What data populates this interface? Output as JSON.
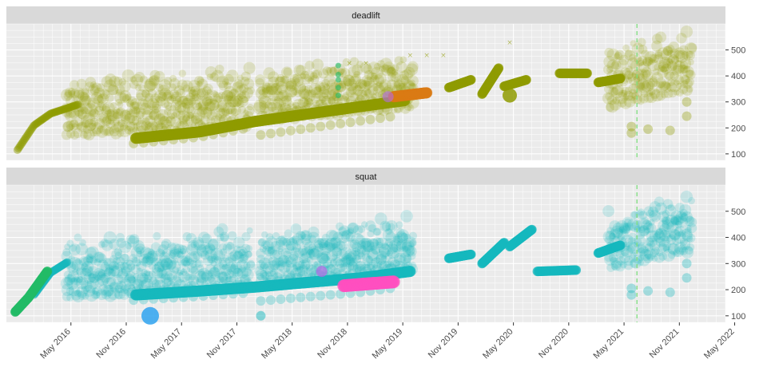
{
  "chart_data": {
    "type": "scatter",
    "facets": [
      "deadlift",
      "squat"
    ],
    "x_ticks": [
      "May 2016",
      "Nov 2016",
      "May 2017",
      "Nov 2017",
      "May 2018",
      "Nov 2018",
      "May 2019",
      "Nov 2019",
      "May 2020",
      "Nov 2020",
      "May 2021",
      "Nov 2021",
      "May 2022"
    ],
    "x_range": [
      2015.75,
      2022.25
    ],
    "y_ticks": [
      100,
      200,
      300,
      400,
      500
    ],
    "y_range": [
      75,
      600
    ],
    "vline_x": 2021.45,
    "colors": {
      "deadlift": "#8f9b00",
      "squat": "#16b8bd",
      "orange": "#d97a14",
      "green": "#22bb66",
      "blue": "#3aa7f0",
      "pink": "#ff4fbf",
      "purple": "#b46ae6",
      "vline": "#7fe07f"
    },
    "deadlift": {
      "main_trend": [
        [
          2016.92,
          160
        ],
        [
          2017.5,
          185
        ],
        [
          2018.0,
          225
        ],
        [
          2018.5,
          255
        ],
        [
          2019.0,
          285
        ],
        [
          2019.35,
          305
        ]
      ],
      "early_climb": [
        [
          2015.85,
          115
        ],
        [
          2016.0,
          210
        ],
        [
          2016.15,
          255
        ],
        [
          2016.4,
          290
        ]
      ],
      "segments": [
        [
          [
            2019.75,
            355
          ],
          [
            2019.95,
            385
          ]
        ],
        [
          [
            2020.05,
            330
          ],
          [
            2020.2,
            430
          ]
        ],
        [
          [
            2020.25,
            360
          ],
          [
            2020.45,
            385
          ]
        ],
        [
          [
            2020.75,
            410
          ],
          [
            2021.0,
            410
          ]
        ],
        [
          [
            2021.1,
            375
          ],
          [
            2021.3,
            390
          ]
        ]
      ],
      "orange_segment": [
        [
          2019.25,
          320
        ],
        [
          2019.55,
          335
        ]
      ],
      "green_marks": [
        [
          2018.75,
          325
        ],
        [
          2018.75,
          355
        ],
        [
          2018.75,
          385
        ],
        [
          2018.75,
          405
        ],
        [
          2018.75,
          440
        ]
      ]
    },
    "squat": {
      "main_trend": [
        [
          2016.92,
          180
        ],
        [
          2017.5,
          195
        ],
        [
          2018.0,
          210
        ],
        [
          2018.4,
          225
        ],
        [
          2018.95,
          245
        ],
        [
          2019.4,
          270
        ]
      ],
      "early_climb": [
        [
          2016.0,
          180
        ],
        [
          2016.15,
          265
        ],
        [
          2016.3,
          305
        ]
      ],
      "segments": [
        [
          [
            2019.75,
            320
          ],
          [
            2019.95,
            335
          ]
        ],
        [
          [
            2020.05,
            300
          ],
          [
            2020.25,
            380
          ]
        ],
        [
          [
            2020.3,
            365
          ],
          [
            2020.5,
            430
          ]
        ],
        [
          [
            2020.55,
            270
          ],
          [
            2020.9,
            275
          ]
        ],
        [
          [
            2021.1,
            340
          ],
          [
            2021.3,
            370
          ]
        ]
      ],
      "pink_cluster": [
        [
          2018.8,
          215
        ],
        [
          2018.95,
          220
        ],
        [
          2019.1,
          225
        ],
        [
          2019.25,
          230
        ]
      ],
      "blue_point": [
        2017.05,
        100
      ],
      "green_climb": [
        [
          2015.83,
          115
        ],
        [
          2015.95,
          170
        ],
        [
          2016.12,
          270
        ]
      ],
      "purple_mark": [
        2018.6,
        270
      ]
    }
  }
}
